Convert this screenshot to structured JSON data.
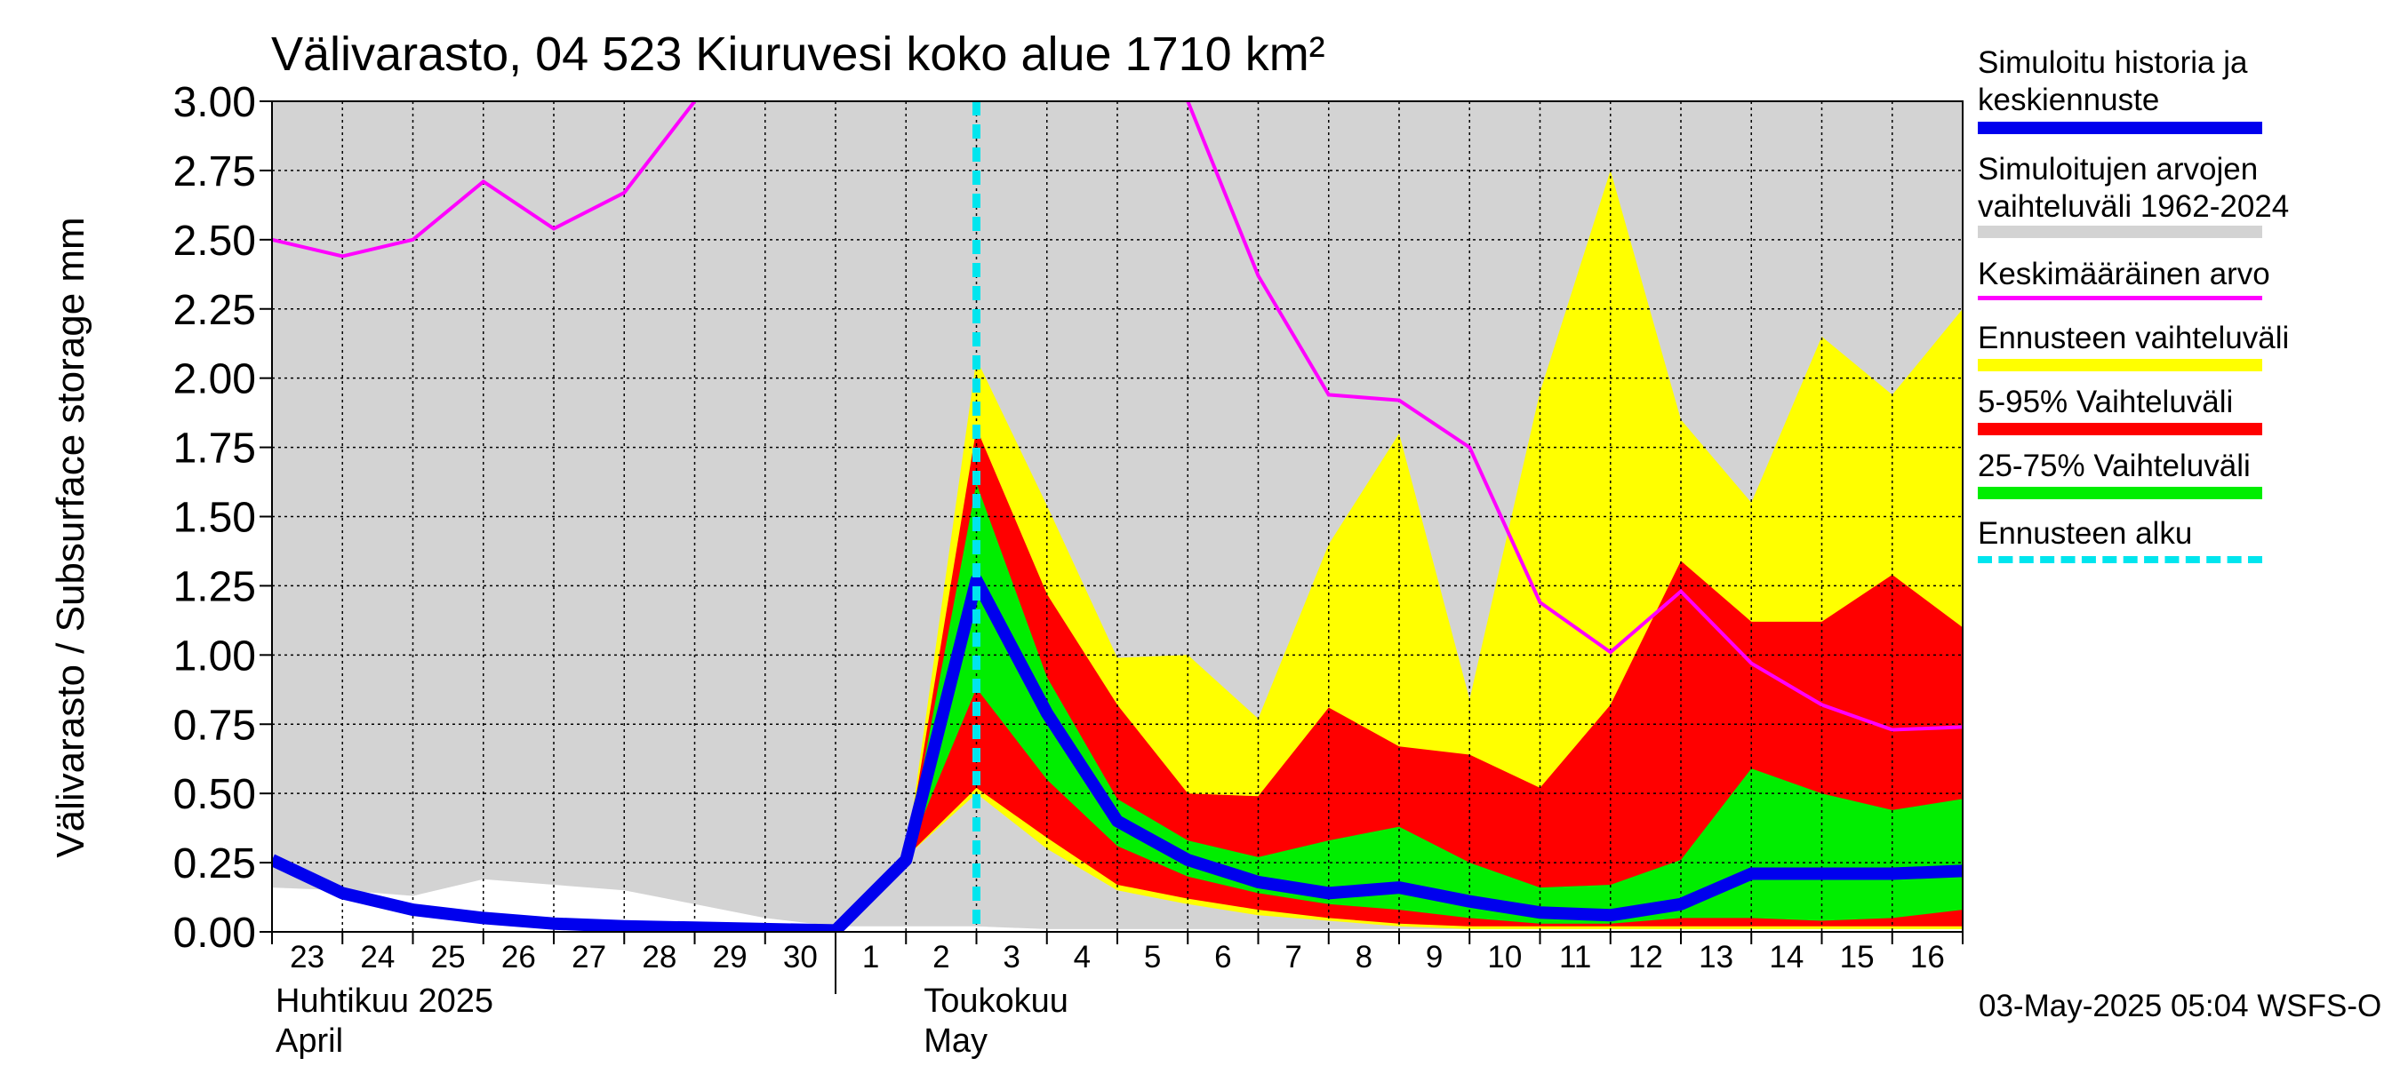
{
  "chart_data": {
    "type": "area",
    "title": "Välivarasto, 04 523 Kiuruvesi koko alue 1710 km²",
    "ylabel": "Välivarasto / Subsurface storage  mm",
    "ylim": [
      0,
      3.0
    ],
    "yticks": [
      "0.00",
      "0.25",
      "0.50",
      "0.75",
      "1.00",
      "1.25",
      "1.50",
      "1.75",
      "2.00",
      "2.25",
      "2.50",
      "2.75",
      "3.00"
    ],
    "grid": true,
    "day_labels": [
      "23",
      "24",
      "25",
      "26",
      "27",
      "28",
      "29",
      "30",
      "1",
      "2",
      "3",
      "4",
      "5",
      "6",
      "7",
      "8",
      "9",
      "10",
      "11",
      "12",
      "13",
      "14",
      "15",
      "16"
    ],
    "month_labels": [
      {
        "line1": "Huhtikuu  2025",
        "line2": "April"
      },
      {
        "line1": "Toukokuu",
        "line2": "May"
      }
    ],
    "forecast_start_day": "3",
    "x": [
      "Apr 23",
      "Apr 24",
      "Apr 25",
      "Apr 26",
      "Apr 27",
      "Apr 28",
      "Apr 29",
      "Apr 30",
      "May 1",
      "May 2",
      "May 3",
      "May 4",
      "May 5",
      "May 6",
      "May 7",
      "May 8",
      "May 9",
      "May 10",
      "May 11",
      "May 12",
      "May 13",
      "May 14",
      "May 15",
      "May 16",
      "May 17"
    ],
    "series": [
      {
        "name": "Simuloitujen arvojen vaihteluväli 1962-2024",
        "upper": [
          3.0,
          3.0,
          3.0,
          3.0,
          3.0,
          3.0,
          3.0,
          3.0,
          3.0,
          3.0,
          3.0,
          3.0,
          3.0,
          3.0,
          3.0,
          3.0,
          3.0,
          3.0,
          3.0,
          3.0,
          3.0,
          3.0,
          3.0,
          3.0,
          3.0
        ],
        "lower": [
          0.16,
          0.15,
          0.13,
          0.19,
          0.17,
          0.15,
          0.1,
          0.05,
          0.02,
          0.02,
          0.02,
          0.01,
          0.01,
          0.01,
          0.01,
          0.01,
          0.01,
          0.01,
          0.01,
          0.01,
          0.01,
          0.01,
          0.01,
          0.01,
          0.01
        ]
      },
      {
        "name": "Ennusteen vaihteluväli",
        "upper": [
          null,
          null,
          null,
          null,
          null,
          null,
          null,
          null,
          null,
          0.27,
          2.07,
          1.54,
          0.99,
          1.0,
          0.77,
          1.4,
          1.8,
          0.84,
          1.95,
          2.75,
          1.85,
          1.55,
          2.15,
          1.94,
          2.25
        ],
        "lower": [
          null,
          null,
          null,
          null,
          null,
          null,
          null,
          null,
          null,
          0.27,
          0.5,
          0.3,
          0.15,
          0.1,
          0.06,
          0.04,
          0.02,
          0.01,
          0.01,
          0.01,
          0.01,
          0.01,
          0.01,
          0.01,
          0.01
        ]
      },
      {
        "name": "5-95% Vaihteluväli",
        "upper": [
          null,
          null,
          null,
          null,
          null,
          null,
          null,
          null,
          null,
          0.27,
          1.82,
          1.22,
          0.82,
          0.5,
          0.49,
          0.81,
          0.67,
          0.64,
          0.52,
          0.82,
          1.34,
          1.12,
          1.12,
          1.29,
          1.1
        ],
        "lower": [
          null,
          null,
          null,
          null,
          null,
          null,
          null,
          null,
          null,
          0.27,
          0.52,
          0.34,
          0.17,
          0.12,
          0.08,
          0.05,
          0.03,
          0.02,
          0.02,
          0.02,
          0.02,
          0.02,
          0.02,
          0.02,
          0.02
        ]
      },
      {
        "name": "25-75% Vaihteluväli",
        "upper": [
          null,
          null,
          null,
          null,
          null,
          null,
          null,
          null,
          null,
          0.27,
          1.62,
          0.92,
          0.48,
          0.33,
          0.27,
          0.33,
          0.38,
          0.25,
          0.16,
          0.17,
          0.26,
          0.59,
          0.5,
          0.44,
          0.48
        ],
        "lower": [
          null,
          null,
          null,
          null,
          null,
          null,
          null,
          null,
          null,
          0.27,
          0.88,
          0.55,
          0.31,
          0.2,
          0.14,
          0.1,
          0.08,
          0.05,
          0.03,
          0.03,
          0.05,
          0.05,
          0.04,
          0.05,
          0.08
        ]
      },
      {
        "name": "Simuloitu historia ja keskiennuste",
        "values": [
          0.26,
          0.14,
          0.08,
          0.05,
          0.03,
          0.02,
          0.015,
          0.01,
          0.005,
          0.26,
          1.27,
          0.79,
          0.4,
          0.26,
          0.18,
          0.14,
          0.16,
          0.11,
          0.07,
          0.06,
          0.1,
          0.21,
          0.21,
          0.21,
          0.22
        ]
      },
      {
        "name": "Keskimääräinen arvo",
        "values": [
          2.5,
          2.44,
          2.5,
          2.71,
          2.54,
          2.67,
          3.2,
          null,
          null,
          null,
          null,
          null,
          null,
          3.2,
          2.37,
          1.94,
          1.92,
          1.75,
          1.19,
          1.01,
          1.23,
          0.97,
          0.82,
          0.73,
          0.74
        ]
      }
    ]
  },
  "legend": [
    {
      "label": "Simuloitu historia ja keskiennuste",
      "color": "#0000ee",
      "style": "thick-line"
    },
    {
      "label": "Simuloitujen arvojen vaihteluväli 1962-2024",
      "color": "#d3d3d3",
      "style": "band"
    },
    {
      "label": "Keskimääräinen arvo",
      "color": "#ff00ff",
      "style": "line"
    },
    {
      "label": "Ennusteen vaihteluväli",
      "color": "#ffff00",
      "style": "band"
    },
    {
      "label": "5-95% Vaihteluväli",
      "color": "#ff0000",
      "style": "band"
    },
    {
      "label": "25-75% Vaihteluväli",
      "color": "#00ee00",
      "style": "band"
    },
    {
      "label": "Ennusteen alku",
      "color": "#00e5ee",
      "style": "dashed"
    }
  ],
  "footer": "03-May-2025 05:04 WSFS-O"
}
